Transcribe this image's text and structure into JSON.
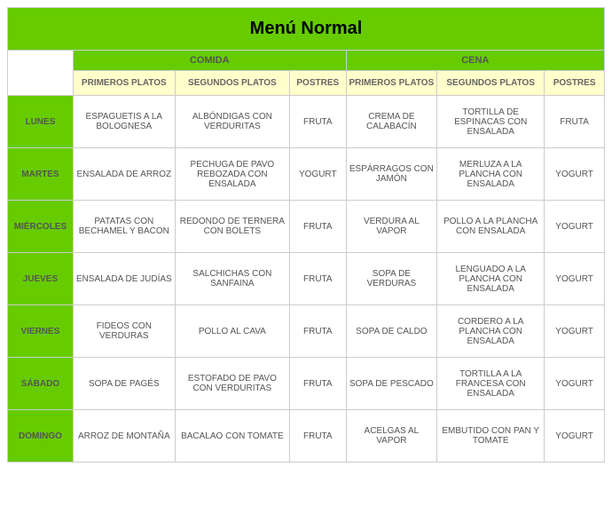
{
  "title": "Menú Normal",
  "mealHeaders": {
    "comida": "COMIDA",
    "cena": "CENA"
  },
  "subHeaders": {
    "primeros": "PRIMEROS PLATOS",
    "segundos": "SEGUNDOS PLATOS",
    "postres": "POSTRES"
  },
  "colors": {
    "green": "#66cc00",
    "cream": "#ffffcc",
    "border": "#cccccc",
    "text": "#555555",
    "bg": "#ffffff"
  },
  "days": [
    {
      "name": "LUNES",
      "comida": {
        "primero": "ESPAGUETIS A LA BOLOGNESA",
        "segundo": "ALBÓNDIGAS CON VERDURITAS",
        "postre": "FRUTA"
      },
      "cena": {
        "primero": "CREMA DE CALABACÍN",
        "segundo": "TORTILLA DE ESPINACAS CON ENSALADA",
        "postre": "FRUTA"
      }
    },
    {
      "name": "MARTES",
      "comida": {
        "primero": "ENSALADA DE ARROZ",
        "segundo": "PECHUGA DE PAVO REBOZADA CON ENSALADA",
        "postre": "YOGURT"
      },
      "cena": {
        "primero": "ESPÁRRAGOS CON JAMÓN",
        "segundo": "MERLUZA A LA PLANCHA CON ENSALADA",
        "postre": "YOGURT"
      }
    },
    {
      "name": "MIÉRCOLES",
      "comida": {
        "primero": "PATATAS CON BECHAMEL Y BACON",
        "segundo": "REDONDO DE TERNERA CON BOLETS",
        "postre": "FRUTA"
      },
      "cena": {
        "primero": "VERDURA AL VAPOR",
        "segundo": "POLLO A LA PLANCHA CON ENSALADA",
        "postre": "YOGURT"
      }
    },
    {
      "name": "JUEVES",
      "comida": {
        "primero": "ENSALADA DE JUDÍAS",
        "segundo": "SALCHICHAS CON SANFAINA",
        "postre": "FRUTA"
      },
      "cena": {
        "primero": "SOPA DE VERDURAS",
        "segundo": "LENGUADO A LA PLANCHA CON ENSALADA",
        "postre": "YOGURT"
      }
    },
    {
      "name": "VIERNES",
      "comida": {
        "primero": "FIDEOS CON VERDURAS",
        "segundo": "POLLO AL CAVA",
        "postre": "FRUTA"
      },
      "cena": {
        "primero": "SOPA DE CALDO",
        "segundo": "CORDERO A LA PLANCHA CON ENSALADA",
        "postre": "YOGURT"
      }
    },
    {
      "name": "SÁBADO",
      "comida": {
        "primero": "SOPA DE PAGÉS",
        "segundo": "ESTOFADO DE PAVO CON VERDURITAS",
        "postre": "FRUTA"
      },
      "cena": {
        "primero": "SOPA DE PESCADO",
        "segundo": "TORTILLA A LA FRANCESA CON ENSALADA",
        "postre": "YOGURT"
      }
    },
    {
      "name": "DOMINGO",
      "comida": {
        "primero": "ARROZ DE MONTAÑA",
        "segundo": "BACALAO CON TOMATE",
        "postre": "FRUTA"
      },
      "cena": {
        "primero": "ACELGAS AL VAPOR",
        "segundo": "EMBUTIDO CON PAN Y TOMATE",
        "postre": "YOGURT"
      }
    }
  ]
}
